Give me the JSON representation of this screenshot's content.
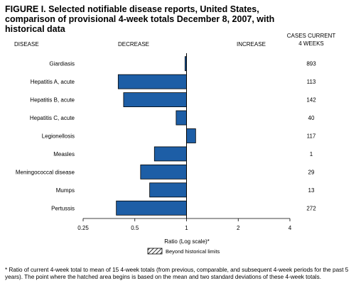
{
  "chart_data": {
    "type": "bar",
    "orientation": "horizontal",
    "title": "FIGURE I. Selected notifiable disease reports, United States, comparison of provisional 4-week totals December 8, 2007, with historical data",
    "column_headers": {
      "disease": "DISEASE",
      "decrease": "DECREASE",
      "increase": "INCREASE",
      "cases_line1": "CASES CURRENT",
      "cases_line2": "4 WEEKS"
    },
    "categories": [
      "Giardiasis",
      "Hepatitis A, acute",
      "Hepatitis B, acute",
      "Hepatitis C, acute",
      "Legionellosis",
      "Measles",
      "Meningococcal disease",
      "Mumps",
      "Pertussis"
    ],
    "values": [
      0.98,
      0.4,
      0.43,
      0.87,
      1.13,
      0.65,
      0.54,
      0.61,
      0.39
    ],
    "cases_current_4_weeks": [
      893,
      113,
      142,
      40,
      117,
      1,
      29,
      13,
      272
    ],
    "xscale": "log2",
    "xlim": [
      0.25,
      4
    ],
    "xticks": [
      0.25,
      0.5,
      1,
      2,
      4
    ],
    "xtick_labels": [
      "0.25",
      "0.5",
      "1",
      "2",
      "4"
    ],
    "xlabel": "Ratio (Log scale)*",
    "legend_label": "Beyond historical limits",
    "bar_color": "#1d5ea6",
    "bar_edge_color": "#000000",
    "footnote": "* Ratio of current 4-week total to mean of 15 4-week totals (from previous, comparable, and subsequent 4-week periods for the past 5 years). The point where the hatched area begins is based on the mean and two standard deviations of these 4-week totals."
  }
}
